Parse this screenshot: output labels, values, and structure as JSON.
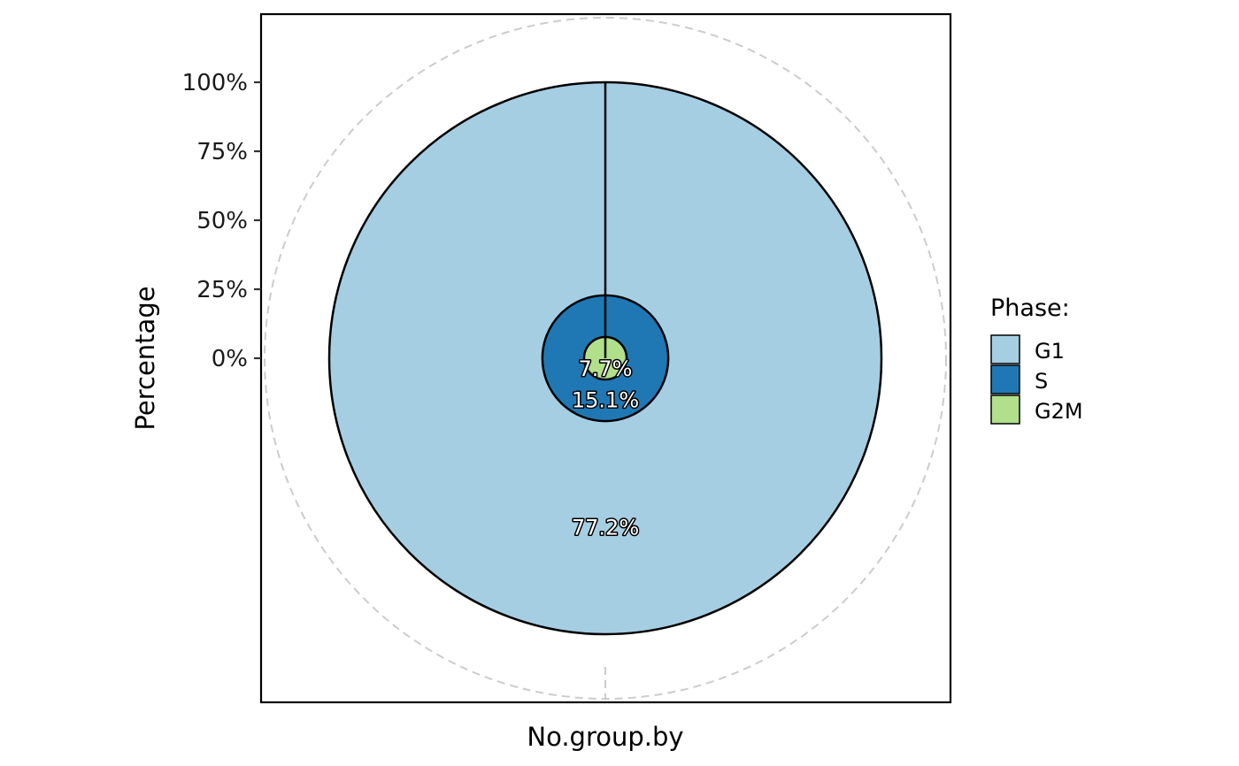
{
  "chart_data": {
    "type": "pie",
    "ylabel": "Percentage",
    "xlabel": "No.group.by",
    "y_tick_labels": [
      "0%",
      "25%",
      "50%",
      "75%",
      "100%"
    ],
    "y_ticks": [
      0,
      25,
      50,
      75,
      100
    ],
    "ylim": [
      0,
      125
    ],
    "legend": {
      "title": "Phase:",
      "placement": "right",
      "items": [
        {
          "name": "G1",
          "color": "#A6CEE3"
        },
        {
          "name": "S",
          "color": "#1F78B4"
        },
        {
          "name": "G2M",
          "color": "#B2DF8A"
        }
      ]
    },
    "slices": [
      {
        "name": "G1",
        "value": 77.2,
        "label": "77.2%",
        "color": "#A6CEE3"
      },
      {
        "name": "S",
        "value": 15.1,
        "label": "15.1%",
        "color": "#1F78B4"
      },
      {
        "name": "G2M",
        "value": 7.7,
        "label": "7.7%",
        "color": "#B2DF8A"
      }
    ],
    "grid": false,
    "background_ring_color": "#CCCCCC"
  }
}
